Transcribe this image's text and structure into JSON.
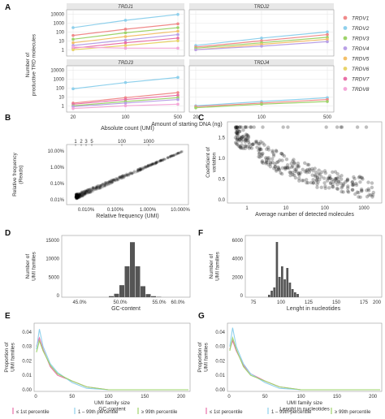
{
  "panel_labels": [
    "A",
    "B",
    "C",
    "D",
    "E",
    "F",
    "G"
  ],
  "colors": {
    "TRDV1": "#f08a8a",
    "TRDV2": "#8ed0ec",
    "TRDV3": "#9ed36a",
    "TRDV4": "#b9a0e6",
    "TRDV5": "#f3c06a",
    "TRDV6": "#e8d46a",
    "TRDV7": "#e870a8",
    "TRDV8": "#f4a8d8",
    "facet_strip": "#e8e8e8",
    "hist_fill": "#555555",
    "grid": "#e5e5e5"
  },
  "panelA": {
    "ylabel": "Number of\nproductive TRD molecules",
    "xlabel": "Amount of starting DNA (ng)",
    "legend": [
      "TRDV1",
      "TRDV2",
      "TRDV3",
      "TRDV4",
      "TRDV5",
      "TRDV6",
      "TRDV7",
      "TRDV8"
    ]
  },
  "panelB": {
    "top_axis_label": "Absolute count (UMI)",
    "xlabel": "Relative frequency (UMI)",
    "ylabel": "Relative frequency\n(Reads)"
  },
  "panelC": {
    "xlabel": "Average number of detected molecules",
    "ylabel": "Coefficient of\nvariation"
  },
  "panelD": {
    "xlabel": "GC-content",
    "ylabel": "Number of\nUMI families"
  },
  "panelE": {
    "xlabel": "UMI family size\nGC-content",
    "ylabel": "Proportion of\nUMI families"
  },
  "panelF": {
    "xlabel": "Lenght in nucleotides",
    "ylabel": "Number of\nUMI families"
  },
  "panelG": {
    "xlabel": "UMI family size\nLenght in nucleotides",
    "ylabel": "Proportion of\nUMI families"
  },
  "percentile_legend": [
    "≤ 1st percentile",
    "1 – 99th percentile",
    "≥ 99th percentile"
  ],
  "chart_data": [
    {
      "panel": "A",
      "type": "line",
      "y_scale": "log",
      "x": [
        20,
        100,
        500
      ],
      "x_tick_labels": [
        "20",
        "100",
        "500"
      ],
      "ylim": [
        0.3,
        20000
      ],
      "y_tick_labels_top": [
        "10000",
        "1000",
        "100",
        "10",
        "1"
      ],
      "y_tick_labels_bottom": [
        "10000",
        "1000",
        "100",
        "10",
        "1"
      ],
      "facets": [
        {
          "title": "TRDJ1",
          "series": [
            {
              "name": "TRDV2",
              "values": [
                300,
                2000,
                9000
              ]
            },
            {
              "name": "TRDV1",
              "values": [
                40,
                200,
                800
              ]
            },
            {
              "name": "TRDV3",
              "values": [
                15,
                80,
                300
              ]
            },
            {
              "name": "TRDV5",
              "values": [
                6,
                30,
                120
              ]
            },
            {
              "name": "TRDV4",
              "values": [
                3,
                12,
                50
              ]
            },
            {
              "name": "TRDV7",
              "values": [
                1.5,
                6,
                20
              ]
            },
            {
              "name": "TRDV6",
              "values": [
                1,
                3,
                10
              ]
            },
            {
              "name": "TRDV8",
              "values": [
                2,
                1.5,
                1.5
              ]
            }
          ]
        },
        {
          "title": "TRDJ2",
          "series": [
            {
              "name": "TRDV2",
              "values": [
                3,
                20,
                100
              ]
            },
            {
              "name": "TRDV1",
              "values": [
                2,
                10,
                50
              ]
            },
            {
              "name": "TRDV3",
              "values": [
                1.5,
                6,
                25
              ]
            },
            {
              "name": "TRDV5",
              "values": [
                1,
                4,
                15
              ]
            },
            {
              "name": "TRDV4",
              "values": [
                1,
                2.5,
                8
              ]
            }
          ]
        },
        {
          "title": "TRDJ3",
          "series": [
            {
              "name": "TRDV2",
              "values": [
                80,
                400,
                1500
              ]
            },
            {
              "name": "TRDV1",
              "values": [
                2,
                8,
                30
              ]
            },
            {
              "name": "TRDV7",
              "values": [
                1.5,
                5,
                15
              ]
            },
            {
              "name": "TRDV3",
              "values": [
                1,
                3,
                8
              ]
            },
            {
              "name": "TRDV4",
              "values": [
                0.8,
                2,
                5
              ]
            },
            {
              "name": "TRDV8",
              "values": [
                0.5,
                1,
                1.5
              ]
            }
          ]
        },
        {
          "title": "TRDJ4",
          "series": [
            {
              "name": "TRDV2",
              "values": [
                1,
                3,
                8
              ]
            },
            {
              "name": "TRDV1",
              "values": [
                0.8,
                2,
                5
              ]
            },
            {
              "name": "TRDV3",
              "values": [
                0.6,
                1.5,
                3
              ]
            }
          ]
        }
      ]
    },
    {
      "panel": "B",
      "type": "scatter",
      "x_scale": "log",
      "y_scale": "log",
      "x_tick_labels": [
        "0.010%",
        "0.100%",
        "1.000%",
        "10.000%"
      ],
      "y_tick_labels": [
        "10.00%",
        "1.00%",
        "0.10%",
        "0.01%"
      ],
      "top_tick_labels": [
        "1",
        "2",
        "3",
        "5",
        "100",
        "1000"
      ]
    },
    {
      "panel": "C",
      "type": "scatter",
      "x_scale": "log",
      "x_tick_labels": [
        "1",
        "10",
        "100",
        "1000"
      ],
      "y_tick_labels": [
        "1.5",
        "1.0",
        "0.5",
        "0.0"
      ],
      "ylim": [
        0,
        1.8
      ]
    },
    {
      "panel": "D",
      "type": "bar",
      "x_tick_labels": [
        "45.0%",
        "50.0%",
        "55.0%",
        "60.0%"
      ],
      "y_tick_labels": [
        "15000",
        "10000",
        "5000",
        "0"
      ],
      "categories": [
        "46%",
        "47%",
        "48%",
        "49%",
        "50%",
        "51%",
        "52%",
        "53%",
        "54%",
        "55%"
      ],
      "values": [
        300,
        1000,
        3500,
        9000,
        16000,
        9000,
        3200,
        900,
        300,
        100
      ],
      "ylim": [
        0,
        17000
      ]
    },
    {
      "panel": "E",
      "type": "line",
      "x_tick_labels": [
        "0",
        "50",
        "100",
        "150",
        "200"
      ],
      "y_tick_labels": [
        "0.04",
        "0.03",
        "0.02",
        "0.01",
        "0.00"
      ],
      "x": [
        1,
        5,
        10,
        20,
        30,
        50,
        70,
        100,
        140
      ],
      "series": [
        {
          "name": "≤ 1st percentile",
          "values": [
            0.03,
            0.036,
            0.028,
            0.016,
            0.01,
            0.006,
            0.002,
            0.0,
            0.0
          ]
        },
        {
          "name": "1 – 99th percentile",
          "values": [
            0.028,
            0.042,
            0.03,
            0.018,
            0.012,
            0.005,
            0.001,
            0.0,
            0.0
          ]
        },
        {
          "name": "≥ 99th percentile",
          "values": [
            0.026,
            0.034,
            0.027,
            0.017,
            0.011,
            0.006,
            0.002,
            0.0,
            0.0
          ]
        }
      ]
    },
    {
      "panel": "F",
      "type": "bar",
      "x_tick_labels": [
        "75",
        "100",
        "125",
        "150",
        "175",
        "200"
      ],
      "y_tick_labels": [
        "6000",
        "4000",
        "2000",
        "0"
      ],
      "categories": [
        "98",
        "100",
        "102",
        "104",
        "106",
        "108",
        "110",
        "112",
        "114",
        "116",
        "118",
        "120"
      ],
      "values": [
        300,
        800,
        1200,
        6800,
        2500,
        3800,
        2200,
        3600,
        1800,
        1000,
        600,
        400
      ],
      "ylim": [
        0,
        7200
      ]
    },
    {
      "panel": "G",
      "type": "line",
      "x_tick_labels": [
        "0",
        "50",
        "100",
        "150",
        "200"
      ],
      "y_tick_labels": [
        "0.04",
        "0.03",
        "0.02",
        "0.01",
        "0.00"
      ],
      "x": [
        1,
        5,
        10,
        20,
        30,
        50,
        70,
        100,
        140
      ],
      "series": [
        {
          "name": "≤ 1st percentile",
          "values": [
            0.028,
            0.034,
            0.027,
            0.017,
            0.011,
            0.006,
            0.002,
            0.0,
            0.0
          ]
        },
        {
          "name": "1 – 99th percentile",
          "values": [
            0.03,
            0.043,
            0.03,
            0.018,
            0.011,
            0.005,
            0.001,
            0.0,
            0.0
          ]
        },
        {
          "name": "≥ 99th percentile",
          "values": [
            0.027,
            0.036,
            0.028,
            0.016,
            0.01,
            0.006,
            0.002,
            0.0,
            0.0
          ]
        }
      ]
    }
  ]
}
